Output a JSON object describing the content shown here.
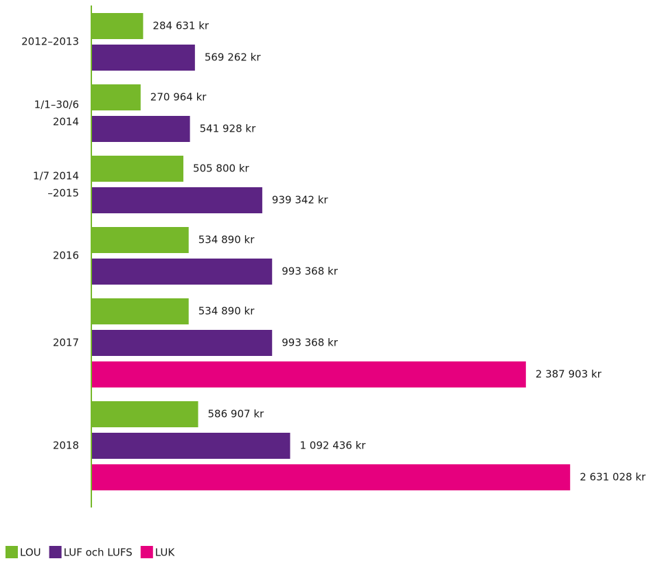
{
  "chart_data": {
    "type": "bar",
    "orientation": "horizontal",
    "categories": [
      "2012–2013",
      "1/1–30/6\n2014",
      "1/7 2014\n–2015",
      "2016",
      "2017",
      "2018"
    ],
    "series": [
      {
        "name": "LOU",
        "color": "#76b82a",
        "values": [
          284631,
          270964,
          505800,
          534890,
          534890,
          586907
        ],
        "value_labels": [
          "284 631 kr",
          "270 964 kr",
          "505 800 kr",
          "534 890 kr",
          "534 890 kr",
          "586 907 kr"
        ]
      },
      {
        "name": "LUF och LUFS",
        "color": "#5c2483",
        "values": [
          569262,
          541928,
          939342,
          993368,
          993368,
          1092436
        ],
        "value_labels": [
          "569 262 kr",
          "541 928 kr",
          "939 342 kr",
          "993 368 kr",
          "993 368 kr",
          "1 092 436 kr"
        ]
      },
      {
        "name": "LUK",
        "color": "#e6007e",
        "values": [
          null,
          null,
          null,
          null,
          2387903,
          2631028
        ],
        "value_labels": [
          null,
          null,
          null,
          null,
          "2 387 903 kr",
          "2 631 028 kr"
        ]
      }
    ],
    "xlim": [
      0,
      3000000
    ],
    "axis_color": "#76b82a",
    "legend": "bottom-left"
  }
}
